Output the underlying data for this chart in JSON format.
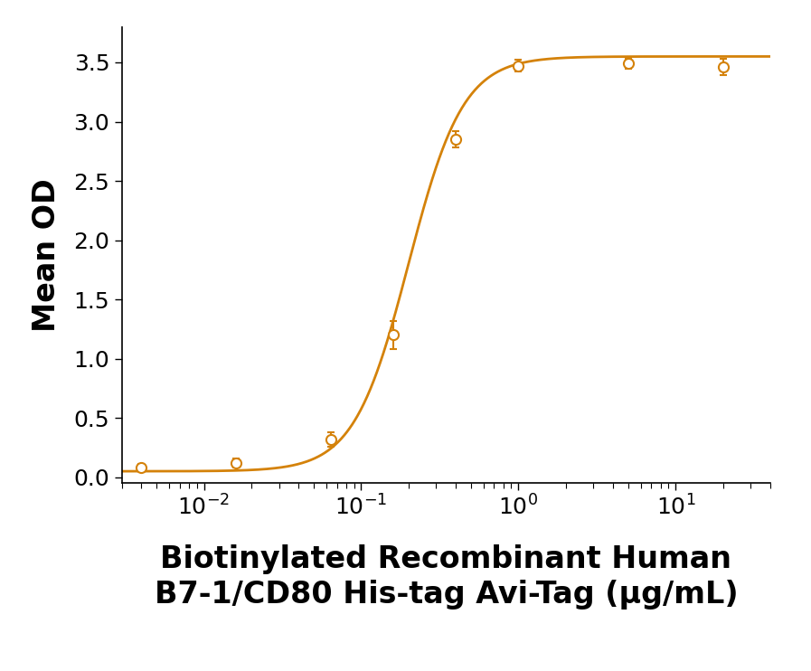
{
  "x_data": [
    0.004,
    0.016,
    0.064,
    0.16,
    0.4,
    1.0,
    5.0,
    20.0
  ],
  "y_data": [
    0.08,
    0.12,
    0.32,
    1.2,
    2.85,
    3.47,
    3.49,
    3.46
  ],
  "y_err": [
    0.03,
    0.04,
    0.06,
    0.12,
    0.07,
    0.05,
    0.04,
    0.07
  ],
  "line_color": "#D4820A",
  "marker_color": "#D4820A",
  "ylabel": "Mean OD",
  "xlabel_line1": "Biotinylated Recombinant Human",
  "xlabel_line2": "B7-1/CD80 His-tag Avi-Tag (μg/mL)",
  "xlim": [
    0.003,
    40.0
  ],
  "ylim": [
    -0.05,
    3.8
  ],
  "yticks": [
    0.0,
    0.5,
    1.0,
    1.5,
    2.0,
    2.5,
    3.0,
    3.5
  ],
  "background_color": "#ffffff",
  "ylabel_fontsize": 24,
  "xlabel_fontsize": 24,
  "tick_fontsize": 18,
  "line_width": 2.0,
  "marker_size": 8,
  "marker_edge_width": 1.5
}
